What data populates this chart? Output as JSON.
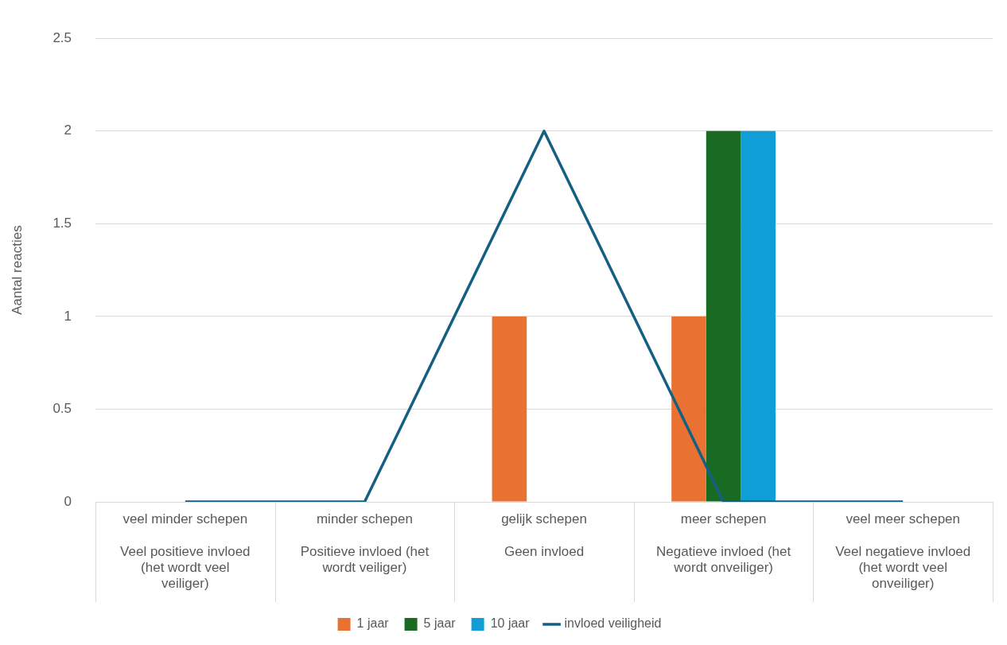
{
  "chart_data": {
    "type": "bar",
    "ylabel": "Aantal reacties",
    "categories": [
      "veel minder schepen\nVeel positieve invloed (het wordt veel veiliger)",
      "minder schepen\nPositieve invloed (het wordt veiliger)",
      "gelijk schepen\nGeen invloed",
      "meer schepen\nNegatieve invloed (het wordt onveiliger)",
      "veel meer schepen\nVeel negatieve invloed (het wordt veel onveiliger)"
    ],
    "series": [
      {
        "name": "1 jaar",
        "color": "#e97132",
        "values": [
          0,
          0,
          1,
          1,
          0
        ]
      },
      {
        "name": "5 jaar",
        "color": "#196b24",
        "values": [
          0,
          0,
          0,
          2,
          0
        ]
      },
      {
        "name": "10 jaar",
        "color": "#0f9ed5",
        "values": [
          0,
          0,
          0,
          2,
          0
        ]
      },
      {
        "name": "invloed veiligheid",
        "type": "line",
        "color": "#156082",
        "values": [
          0,
          0,
          2,
          0,
          0
        ]
      }
    ],
    "ylim": [
      0,
      2.5
    ],
    "yticks": [
      0,
      0.5,
      1,
      1.5,
      2,
      2.5
    ],
    "grid": "y",
    "legend": "bottom",
    "marker": "none"
  }
}
